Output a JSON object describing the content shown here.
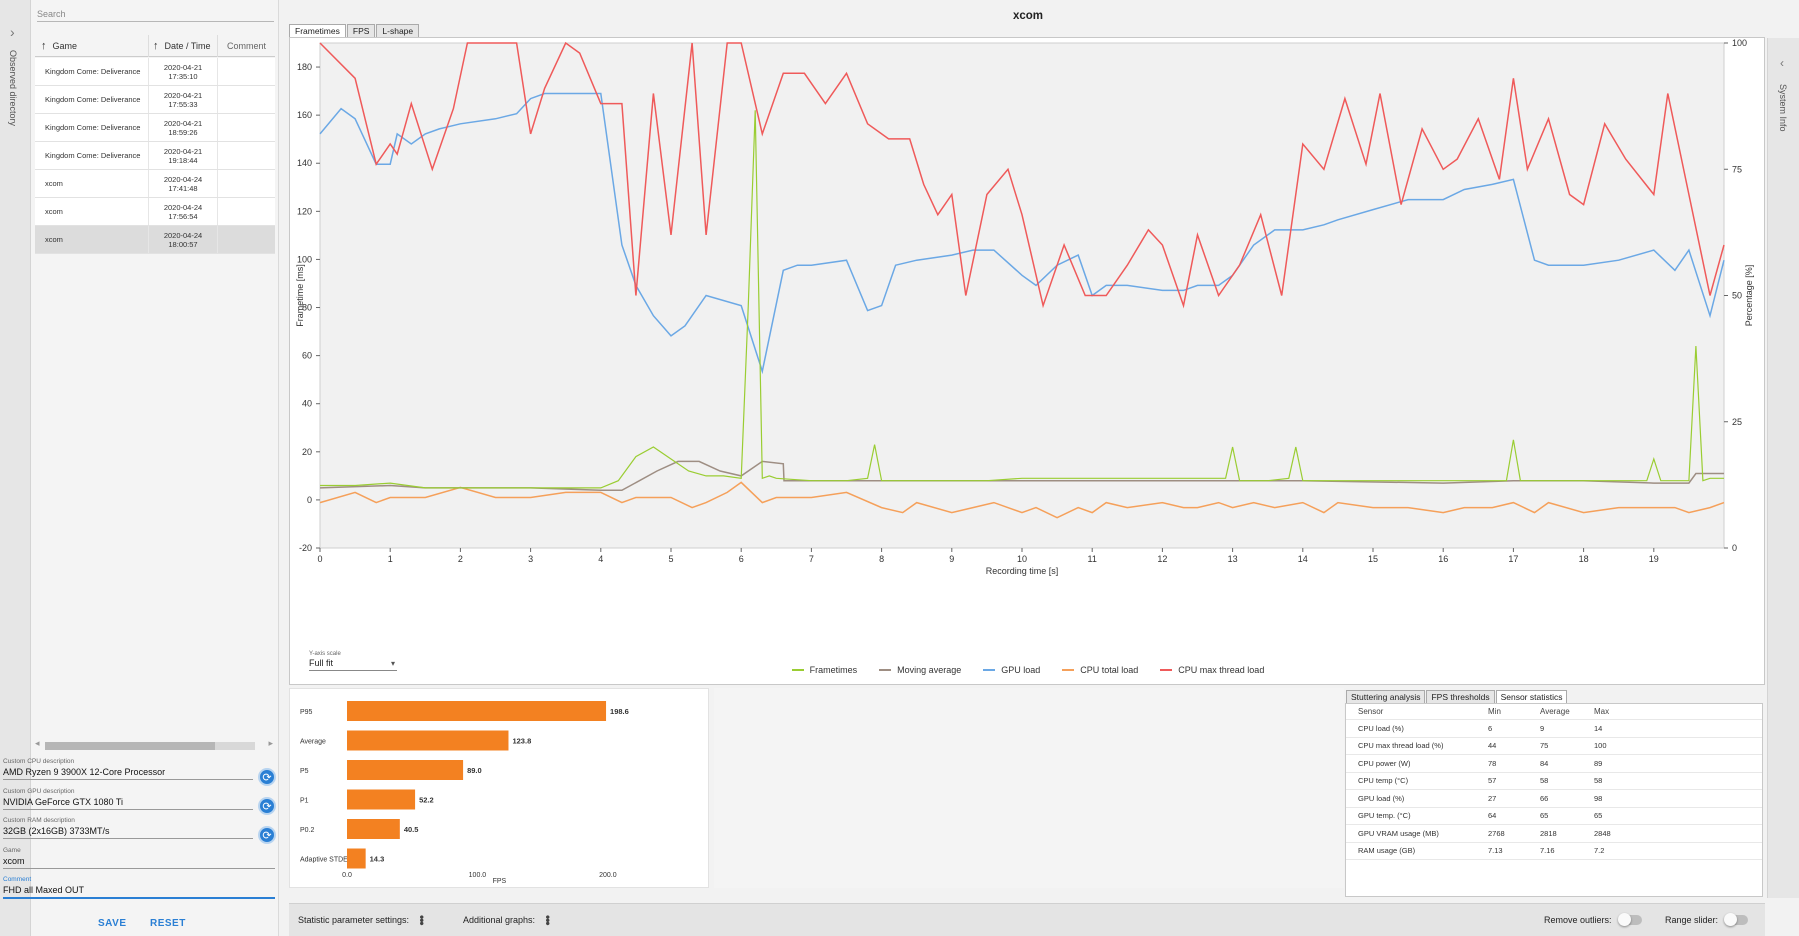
{
  "sidebar": {
    "observed_label": "Observed directory"
  },
  "search": {
    "placeholder": "Search"
  },
  "table": {
    "headers": {
      "game": "Game",
      "date": "Date / Time",
      "comment": "Comment"
    },
    "rows": [
      {
        "game": "Kingdom Come: Deliverance",
        "date": "2020-04-21",
        "time": "17:35:10",
        "comment": ""
      },
      {
        "game": "Kingdom Come: Deliverance",
        "date": "2020-04-21",
        "time": "17:55:33",
        "comment": ""
      },
      {
        "game": "Kingdom Come: Deliverance",
        "date": "2020-04-21",
        "time": "18:59:26",
        "comment": ""
      },
      {
        "game": "Kingdom Come: Deliverance",
        "date": "2020-04-21",
        "time": "19:18:44",
        "comment": ""
      },
      {
        "game": "xcom",
        "date": "2020-04-24",
        "time": "17:41:48",
        "comment": ""
      },
      {
        "game": "xcom",
        "date": "2020-04-24",
        "time": "17:56:54",
        "comment": ""
      },
      {
        "game": "xcom",
        "date": "2020-04-24",
        "time": "18:00:57",
        "comment": ""
      }
    ]
  },
  "fields": {
    "cpu": {
      "label": "Custom CPU description",
      "value": "AMD Ryzen 9 3900X 12-Core Processor"
    },
    "gpu": {
      "label": "Custom GPU description",
      "value": "NVIDIA GeForce GTX 1080 Ti"
    },
    "ram": {
      "label": "Custom RAM description",
      "value": "32GB (2x16GB) 3733MT/s"
    },
    "game": {
      "label": "Game",
      "value": "xcom"
    },
    "comment": {
      "label": "Comment",
      "value": "FHD all Maxed OUT"
    }
  },
  "buttons": {
    "save": "SAVE",
    "reset": "RESET"
  },
  "main": {
    "title": "xcom",
    "tabs": [
      "Frametimes",
      "FPS",
      "L-shape"
    ]
  },
  "yaxis_scale": {
    "label": "Y-axis scale",
    "value": "Full fit"
  },
  "chart_data": [
    {
      "type": "line",
      "xlabel": "Recording time [s]",
      "ylabel": "Frametime [ms]",
      "y2label": "Percentage [%]",
      "xlim": [
        0,
        20
      ],
      "ylim": [
        -20,
        190
      ],
      "y2lim": [
        0,
        100
      ],
      "xticks": [
        0,
        1,
        2,
        3,
        4,
        5,
        6,
        7,
        8,
        9,
        10,
        11,
        12,
        13,
        14,
        15,
        16,
        17,
        18,
        19
      ],
      "yticks": [
        -20,
        0,
        20,
        40,
        60,
        80,
        100,
        120,
        140,
        160,
        180
      ],
      "y2ticks": [
        0,
        25,
        50,
        75,
        100
      ],
      "colors": {
        "frametimes": "#9acd32",
        "moving_average": "#9e8e83",
        "gpu_load": "#6ba8e5",
        "cpu_total_load": "#f5a05a",
        "cpu_max_thread_load": "#ef5a5a"
      },
      "series": [
        {
          "name": "Frametimes",
          "axis": "left",
          "x": [
            0,
            0.5,
            1,
            1.5,
            2,
            2.5,
            3,
            3.5,
            4,
            4.25,
            4.5,
            4.75,
            5,
            5.25,
            5.5,
            5.75,
            6,
            6.1,
            6.2,
            6.3,
            6.4,
            6.5,
            7,
            7.5,
            7.8,
            7.9,
            8,
            8.5,
            9,
            9.5,
            10,
            10.5,
            11,
            11.5,
            12,
            12.5,
            12.9,
            13,
            13.1,
            13.5,
            13.8,
            13.9,
            14,
            14.5,
            15,
            15.5,
            16,
            16.5,
            16.9,
            17,
            17.1,
            17.5,
            18,
            18.5,
            18.9,
            19,
            19.1,
            19.5,
            19.6,
            19.7,
            19.8,
            20
          ],
          "values": [
            6,
            6,
            7,
            5,
            5,
            5,
            5,
            5,
            5,
            8,
            18,
            22,
            17,
            12,
            10,
            10,
            9,
            80,
            162,
            9,
            10,
            9,
            8,
            8,
            9,
            23,
            8,
            8,
            8,
            8,
            9,
            9,
            9,
            9,
            9,
            9,
            9,
            22,
            8,
            8,
            9,
            22,
            8,
            8,
            8,
            8,
            8,
            8,
            8,
            25,
            8,
            8,
            8,
            8,
            8,
            17,
            8,
            8,
            64,
            8,
            9,
            9
          ]
        },
        {
          "name": "Moving average",
          "axis": "left",
          "x": [
            0,
            1,
            1.5,
            2,
            3,
            4,
            4.3,
            4.8,
            5.1,
            5.4,
            5.7,
            6,
            6.3,
            6.6,
            6.61,
            8,
            10,
            12,
            14,
            16,
            17,
            18,
            19,
            19.5,
            19.6,
            20
          ],
          "values": [
            5,
            6,
            5,
            5,
            5,
            4,
            4,
            12,
            16,
            16,
            12,
            10,
            16,
            15,
            8,
            8,
            8,
            8,
            8,
            7,
            8,
            8,
            7,
            7,
            11,
            11
          ]
        },
        {
          "name": "GPU load",
          "axis": "right",
          "x": [
            0,
            0.3,
            0.5,
            0.8,
            1,
            1.1,
            1.3,
            1.5,
            1.7,
            2,
            2.5,
            2.8,
            3,
            3.2,
            3.5,
            4,
            4.3,
            4.5,
            4.75,
            5,
            5.2,
            5.5,
            6,
            6.3,
            6.6,
            6.8,
            7,
            7.5,
            7.8,
            8,
            8.2,
            8.5,
            9,
            9.3,
            9.6,
            10,
            10.2,
            10.5,
            10.8,
            11,
            11.2,
            11.5,
            12,
            12.3,
            12.5,
            12.8,
            13,
            13.3,
            13.6,
            14,
            14.3,
            14.5,
            15,
            15.5,
            16,
            16.3,
            16.7,
            17,
            17.3,
            17.5,
            18,
            18.5,
            19,
            19.3,
            19.5,
            19.8,
            20
          ],
          "values": [
            82,
            87,
            85,
            76,
            76,
            82,
            80,
            82,
            83,
            84,
            85,
            86,
            89,
            90,
            90,
            90,
            60,
            52,
            46,
            42,
            44,
            50,
            48,
            35,
            55,
            56,
            56,
            57,
            47,
            48,
            56,
            57,
            58,
            59,
            59,
            54,
            52,
            56,
            58,
            50,
            52,
            52,
            51,
            51,
            52,
            52,
            54,
            60,
            63,
            63,
            64,
            65,
            67,
            69,
            69,
            71,
            72,
            73,
            57,
            56,
            56,
            57,
            59,
            55,
            59,
            46,
            57
          ]
        },
        {
          "name": "CPU total load",
          "axis": "right",
          "x": [
            0,
            0.5,
            0.8,
            1,
            1.5,
            2,
            2.5,
            3,
            3.5,
            4,
            4.3,
            4.5,
            5,
            5.3,
            5.5,
            5.8,
            6,
            6.3,
            6.5,
            7,
            7.5,
            8,
            8.3,
            8.5,
            9,
            9.3,
            9.6,
            10,
            10.2,
            10.5,
            10.8,
            11,
            11.2,
            11.5,
            12,
            12.3,
            12.5,
            12.8,
            13,
            13.3,
            13.6,
            14,
            14.3,
            14.5,
            15,
            15.5,
            16,
            16.3,
            16.7,
            17,
            17.3,
            17.5,
            18,
            18.5,
            19,
            19.3,
            19.5,
            19.8,
            20
          ],
          "values": [
            9,
            11,
            9,
            10,
            10,
            12,
            10,
            10,
            11,
            11,
            9,
            10,
            10,
            8,
            9,
            11,
            13,
            9,
            10,
            10,
            11,
            8,
            7,
            9,
            7,
            8,
            9,
            7,
            8,
            6,
            8,
            7,
            9,
            8,
            9,
            8,
            8,
            9,
            8,
            9,
            8,
            9,
            7,
            9,
            8,
            8,
            7,
            8,
            8,
            9,
            7,
            9,
            7,
            8,
            8,
            8,
            7,
            8,
            9
          ]
        },
        {
          "name": "CPU max thread load",
          "axis": "right",
          "x": [
            0,
            0.5,
            0.8,
            1,
            1.1,
            1.3,
            1.6,
            1.9,
            2.1,
            2.5,
            2.8,
            3,
            3.2,
            3.5,
            3.7,
            4,
            4.3,
            4.5,
            4.75,
            5,
            5.3,
            5.5,
            5.8,
            6,
            6.3,
            6.6,
            6.9,
            7.2,
            7.5,
            7.8,
            8.1,
            8.4,
            8.6,
            8.8,
            9,
            9.2,
            9.5,
            9.8,
            10,
            10.3,
            10.6,
            10.9,
            11.2,
            11.5,
            11.8,
            12,
            12.3,
            12.5,
            12.8,
            13.1,
            13.4,
            13.7,
            14,
            14.3,
            14.6,
            14.9,
            15.1,
            15.4,
            15.7,
            16,
            16.2,
            16.5,
            16.8,
            17,
            17.2,
            17.5,
            17.8,
            18,
            18.3,
            18.6,
            19,
            19.2,
            19.5,
            19.8,
            20
          ],
          "values": [
            100,
            93,
            76,
            80,
            78,
            88,
            75,
            87,
            100,
            100,
            100,
            82,
            91,
            100,
            98,
            88,
            88,
            50,
            90,
            62,
            100,
            62,
            100,
            100,
            82,
            94,
            94,
            88,
            94,
            84,
            81,
            81,
            72,
            66,
            70,
            50,
            70,
            75,
            66,
            48,
            60,
            50,
            50,
            56,
            63,
            60,
            48,
            62,
            50,
            56,
            66,
            50,
            80,
            75,
            89,
            76,
            90,
            68,
            83,
            75,
            77,
            85,
            73,
            93,
            75,
            85,
            70,
            68,
            84,
            77,
            70,
            90,
            70,
            50,
            60
          ]
        }
      ]
    },
    {
      "type": "bar",
      "orientation": "horizontal",
      "categories": [
        "P95",
        "Average",
        "P5",
        "P1",
        "P0.2",
        "Adaptive STDEV"
      ],
      "values": [
        198.6,
        123.8,
        89.0,
        52.2,
        40.5,
        14.3
      ],
      "labels": [
        "198.6",
        "123.8",
        "89.0",
        "52.2",
        "40.5",
        "14.3"
      ],
      "xticks": [
        "0.0",
        "100.0",
        "200.0"
      ],
      "xlabel": "FPS",
      "xlim": [
        0,
        230
      ],
      "color": "#f38121"
    }
  ],
  "legend": [
    "Frametimes",
    "Moving average",
    "GPU load",
    "CPU total load",
    "CPU max thread load"
  ],
  "stats": {
    "tabs": [
      "Stuttering analysis",
      "FPS thresholds",
      "Sensor statistics"
    ],
    "headers": [
      "Sensor",
      "Min",
      "Average",
      "Max"
    ],
    "rows": [
      [
        "CPU load (%)",
        "6",
        "9",
        "14"
      ],
      [
        "CPU max thread load (%)",
        "44",
        "75",
        "100"
      ],
      [
        "CPU power (W)",
        "78",
        "84",
        "89"
      ],
      [
        "CPU temp (°C)",
        "57",
        "58",
        "58"
      ],
      [
        "GPU load (%)",
        "27",
        "66",
        "98"
      ],
      [
        "GPU temp. (°C)",
        "64",
        "65",
        "65"
      ],
      [
        "GPU VRAM usage (MB)",
        "2768",
        "2818",
        "2848"
      ],
      [
        "RAM usage (GB)",
        "7.13",
        "7.16",
        "7.2"
      ]
    ]
  },
  "right_strip": {
    "label": "System Info"
  },
  "bottom_bar": {
    "stat_params": "Statistic parameter settings:",
    "additional_graphs": "Additional graphs:",
    "remove_outliers": "Remove outliers:",
    "range_slider": "Range slider:"
  }
}
